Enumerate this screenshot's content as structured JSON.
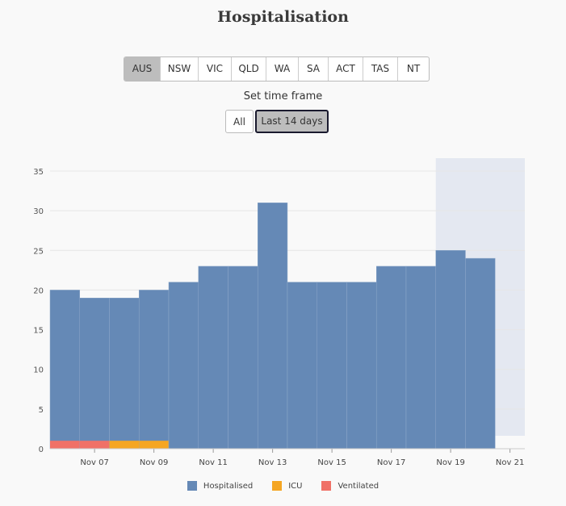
{
  "page": {
    "title": "Hospitalisation",
    "timeframe_label": "Set time frame"
  },
  "regions": [
    {
      "label": "AUS",
      "active": true
    },
    {
      "label": "NSW",
      "active": false
    },
    {
      "label": "VIC",
      "active": false
    },
    {
      "label": "QLD",
      "active": false
    },
    {
      "label": "WA",
      "active": false
    },
    {
      "label": "SA",
      "active": false
    },
    {
      "label": "ACT",
      "active": false
    },
    {
      "label": "TAS",
      "active": false
    },
    {
      "label": "NT",
      "active": false
    }
  ],
  "timeframes": [
    {
      "label": "All",
      "active": false
    },
    {
      "label": "Last 14 days",
      "active": true
    }
  ],
  "colors": {
    "hospitalised": "#6589b6",
    "icu": "#f5a623",
    "ventilated": "#f07167",
    "shaded_region": "#e4e8f1",
    "grid": "#e6e6e6"
  },
  "chart_data": {
    "type": "bar",
    "title": "Hospitalisation",
    "xlabel": "",
    "ylabel": "",
    "ylim": [
      0,
      35
    ],
    "yticks": [
      0,
      5,
      10,
      15,
      20,
      25,
      30,
      35
    ],
    "grid": true,
    "legend_position": "bottom",
    "categories": [
      "Nov 06",
      "Nov 07",
      "Nov 08",
      "Nov 09",
      "Nov 10",
      "Nov 11",
      "Nov 12",
      "Nov 13",
      "Nov 14",
      "Nov 15",
      "Nov 16",
      "Nov 17",
      "Nov 18",
      "Nov 19",
      "Nov 20"
    ],
    "xtick_labels": [
      "Nov 07",
      "Nov 09",
      "Nov 11",
      "Nov 13",
      "Nov 15",
      "Nov 17",
      "Nov 19",
      "Nov 21"
    ],
    "series": [
      {
        "name": "Hospitalised",
        "values": [
          20,
          19,
          19,
          20,
          21,
          23,
          23,
          31,
          21,
          21,
          21,
          23,
          23,
          25,
          24
        ]
      },
      {
        "name": "ICU",
        "values": [
          0,
          0,
          1,
          1,
          0,
          0,
          0,
          0,
          0,
          0,
          0,
          0,
          0,
          0,
          0
        ]
      },
      {
        "name": "Ventilated",
        "values": [
          1,
          1,
          0,
          0,
          0,
          0,
          0,
          0,
          0,
          0,
          0,
          0,
          0,
          0,
          0
        ]
      }
    ],
    "shaded_region": {
      "from": "Nov 19",
      "to": "Nov 22"
    }
  }
}
